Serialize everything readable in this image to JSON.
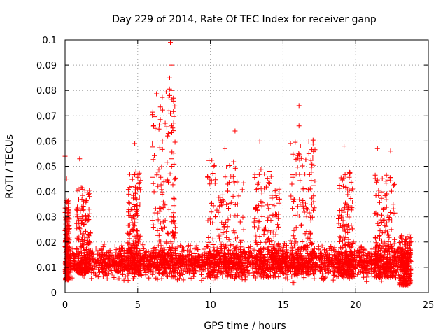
{
  "chart_data": {
    "type": "scatter",
    "title": "Day 229 of 2014, Rate Of TEC Index for receiver ganp",
    "xlabel": "GPS time / hours",
    "ylabel": "ROTI / TECUs",
    "xlim": [
      0,
      25
    ],
    "ylim": [
      0,
      0.1
    ],
    "xticks": [
      0,
      5,
      10,
      15,
      20,
      25
    ],
    "yticks": [
      0,
      0.01,
      0.02,
      0.03,
      0.04,
      0.05,
      0.06,
      0.07,
      0.08,
      0.09,
      0.1
    ],
    "xtick_labels": [
      "0",
      "5",
      "10",
      "15",
      "20",
      "25"
    ],
    "ytick_labels": [
      "0",
      "0.01",
      "0.02",
      "0.03",
      "0.04",
      "0.05",
      "0.06",
      "0.07",
      "0.08",
      "0.09",
      "0.1"
    ],
    "grid": true,
    "marker": "+",
    "color": "#ff0000",
    "series": [
      {
        "name": "ROTI",
        "notable_points": [
          {
            "x": 7.25,
            "y": 0.099
          },
          {
            "x": 7.3,
            "y": 0.09
          },
          {
            "x": 7.2,
            "y": 0.085
          },
          {
            "x": 7.3,
            "y": 0.08
          },
          {
            "x": 7.2,
            "y": 0.078
          },
          {
            "x": 16.1,
            "y": 0.074
          },
          {
            "x": 7.15,
            "y": 0.072
          },
          {
            "x": 7.25,
            "y": 0.071
          },
          {
            "x": 16.1,
            "y": 0.066
          },
          {
            "x": 6.2,
            "y": 0.065
          },
          {
            "x": 7.1,
            "y": 0.063
          },
          {
            "x": 11.7,
            "y": 0.064
          },
          {
            "x": 6.7,
            "y": 0.06
          },
          {
            "x": 13.4,
            "y": 0.06
          },
          {
            "x": 4.8,
            "y": 0.059
          },
          {
            "x": 19.2,
            "y": 0.058
          },
          {
            "x": 21.5,
            "y": 0.057
          },
          {
            "x": 11.0,
            "y": 0.057
          },
          {
            "x": 22.4,
            "y": 0.056
          },
          {
            "x": 0.0,
            "y": 0.054
          },
          {
            "x": 1.0,
            "y": 0.053
          },
          {
            "x": 0.1,
            "y": 0.045
          },
          {
            "x": 16.5,
            "y": 0.018
          }
        ],
        "clusters": [
          {
            "x_from": 0.0,
            "x_to": 23.8,
            "y_min": 0.003,
            "y_max": 0.02
          },
          {
            "x_from": 0.0,
            "x_to": 0.3,
            "y_min": 0.005,
            "y_max": 0.045
          },
          {
            "x_from": 0.8,
            "x_to": 1.8,
            "y_min": 0.008,
            "y_max": 0.05
          },
          {
            "x_from": 4.3,
            "x_to": 5.2,
            "y_min": 0.008,
            "y_max": 0.058
          },
          {
            "x_from": 6.0,
            "x_to": 7.6,
            "y_min": 0.01,
            "y_max": 0.099
          },
          {
            "x_from": 9.8,
            "x_to": 12.3,
            "y_min": 0.006,
            "y_max": 0.064
          },
          {
            "x_from": 13.0,
            "x_to": 14.8,
            "y_min": 0.006,
            "y_max": 0.06
          },
          {
            "x_from": 15.5,
            "x_to": 17.2,
            "y_min": 0.007,
            "y_max": 0.074
          },
          {
            "x_from": 18.8,
            "x_to": 19.8,
            "y_min": 0.006,
            "y_max": 0.058
          },
          {
            "x_from": 21.3,
            "x_to": 22.7,
            "y_min": 0.006,
            "y_max": 0.057
          },
          {
            "x_from": 23.0,
            "x_to": 23.8,
            "y_min": 0.003,
            "y_max": 0.028
          }
        ],
        "point_count": 4200
      }
    ]
  }
}
